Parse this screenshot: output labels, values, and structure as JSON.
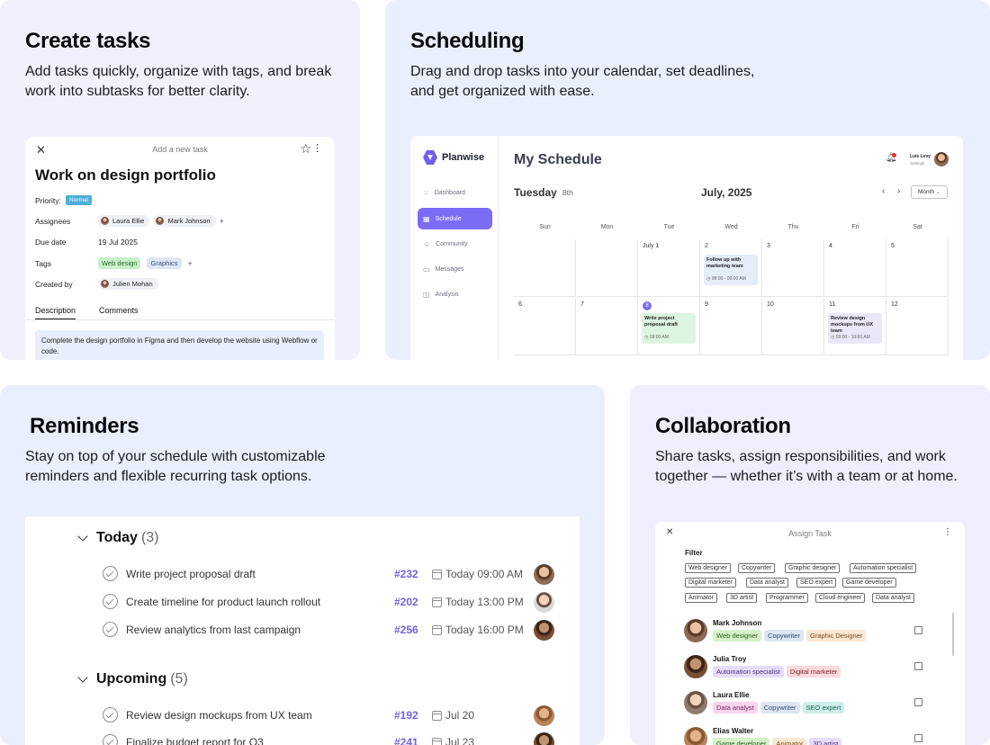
{
  "create_tasks": {
    "title": "Create tasks",
    "description": "Add tasks quickly, organize with tags, and break work into subtasks for better clarity.",
    "panel": {
      "header": "Add a new task",
      "task_title": "Work on design portfolio",
      "priority_label": "Priority:",
      "priority_value": "Normal",
      "assignees_label": "Assignees",
      "assignees": [
        "Laura Ellie",
        "Mark Johnson"
      ],
      "due_label": "Due date",
      "due_value": "19 Jul 2025",
      "tags_label": "Tags",
      "tags": [
        "Web design",
        "Graphics"
      ],
      "created_label": "Created by",
      "created_by": "Julien Mohan",
      "tabs": [
        "Description",
        "Comments"
      ],
      "body": "Complete the design portfolio in Figma and then develop the website using Webflow or code."
    }
  },
  "scheduling": {
    "title": "Scheduling",
    "description": "Drag and drop tasks into your calendar, set deadlines, and get organized with ease.",
    "app": {
      "brand": "Planwise",
      "nav": [
        "Dashboard",
        "Schedule",
        "Community",
        "Messages",
        "Analysis"
      ],
      "page_title": "My Schedule",
      "user_name": "Luis Levy",
      "user_sub": "Settings",
      "day_label": "Tuesday",
      "day_num": "8th",
      "month_label": "July, 2025",
      "view": "Month",
      "weekdays": [
        "Sun",
        "Mon",
        "Tue",
        "Wed",
        "Thu",
        "Fri",
        "Sat"
      ],
      "week1": [
        "",
        "",
        "July 1",
        "2",
        "3",
        "4",
        "5"
      ],
      "week2": [
        "6",
        "7",
        "8",
        "9",
        "10",
        "11",
        "12"
      ],
      "events": [
        {
          "title": "Follow up with marketing team",
          "time": "08:00 - 09:00 AM"
        },
        {
          "title": "Write project proposal draft",
          "time": "09:00 AM"
        },
        {
          "title": "Review design mockups from UX team",
          "time": "09:00 - 10:00 AM"
        }
      ]
    }
  },
  "reminders": {
    "title": "Reminders",
    "description": "Stay on top of your schedule with customizable reminders and flexible recurring task options.",
    "today": {
      "label": "Today",
      "count": "(3)"
    },
    "upcoming": {
      "label": "Upcoming",
      "count": "(5)"
    },
    "today_items": [
      {
        "text": "Write project proposal draft",
        "tag": "#232",
        "date": "Today 09:00 AM"
      },
      {
        "text": "Create timeline for product launch rollout",
        "tag": "#202",
        "date": "Today 13:00 PM"
      },
      {
        "text": "Review analytics from last campaign",
        "tag": "#256",
        "date": "Today 16:00 PM"
      }
    ],
    "upcoming_items": [
      {
        "text": "Review design mockups from UX team",
        "tag": "#192",
        "date": "Jul 20"
      },
      {
        "text": "Finalize budget report for Q3",
        "tag": "#241",
        "date": "Jul 23"
      }
    ]
  },
  "collaboration": {
    "title": "Collaboration",
    "description": "Share tasks, assign responsibilities, and work together — whether it’s with a team or at home.",
    "panel": {
      "header": "Assign Task",
      "filter_label": "Filter",
      "filters": [
        [
          "Web designer",
          "Copywriter",
          "Graphic designer",
          "Automation specialist"
        ],
        [
          "Digital marketer",
          "Data analyst",
          "SEO expert",
          "Game developer"
        ],
        [
          "Animator",
          "3D artist",
          "Programmer",
          "Cloud engineer",
          "Data analyst"
        ]
      ],
      "users": [
        {
          "name": "Mark Johnson",
          "roles": [
            "Web designer",
            "Copywriter",
            "Graphic Designer"
          ]
        },
        {
          "name": "Julia Troy",
          "roles": [
            "Automation specialist",
            "Digital marketer"
          ]
        },
        {
          "name": "Laura Ellie",
          "roles": [
            "Data analyst",
            "Copywriter",
            "SEO expert"
          ]
        },
        {
          "name": "Elias Walter",
          "roles": [
            "Game developer",
            "Animator",
            "3D artist"
          ]
        }
      ]
    }
  },
  "colors": {
    "accent": "#7062e8",
    "schedule_active": "#7b6cf6",
    "card_lavender": "#f1f0fd",
    "card_blue": "#e9effd"
  }
}
